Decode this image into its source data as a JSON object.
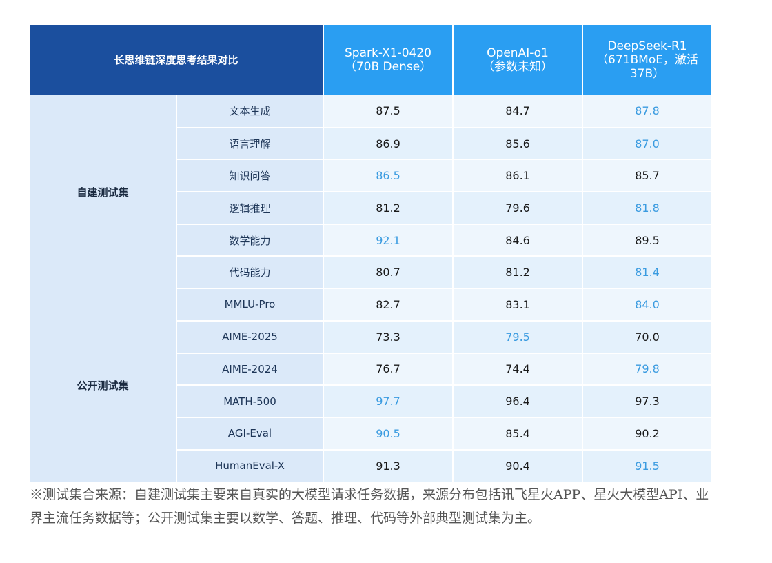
{
  "table": {
    "corner_title": "长思维链深度思考结果对比",
    "columns": [
      {
        "name": "Spark-X1-0420",
        "sub": "（70B Dense）"
      },
      {
        "name": "OpenAI-o1",
        "sub": "（参数未知）"
      },
      {
        "name": "DeepSeek-R1",
        "sub": "（671BMoE，激活37B）"
      }
    ],
    "highlight_color": "#3a9be0",
    "sections": [
      {
        "name": "自建测试集",
        "rows": [
          {
            "task": "文本生成",
            "values": [
              "87.5",
              "84.7",
              "87.8"
            ],
            "best": 2
          },
          {
            "task": "语言理解",
            "values": [
              "86.9",
              "85.6",
              "87.0"
            ],
            "best": 2
          },
          {
            "task": "知识问答",
            "values": [
              "86.5",
              "86.1",
              "85.7"
            ],
            "best": 0
          },
          {
            "task": "逻辑推理",
            "values": [
              "81.2",
              "79.6",
              "81.8"
            ],
            "best": 2
          },
          {
            "task": "数学能力",
            "values": [
              "92.1",
              "84.6",
              "89.5"
            ],
            "best": 0
          },
          {
            "task": "代码能力",
            "values": [
              "80.7",
              "81.2",
              "81.4"
            ],
            "best": 2
          }
        ]
      },
      {
        "name": "公开测试集",
        "rows": [
          {
            "task": "MMLU-Pro",
            "values": [
              "82.7",
              "83.1",
              "84.0"
            ],
            "best": 2
          },
          {
            "task": "AIME-2025",
            "values": [
              "73.3",
              "79.5",
              "70.0"
            ],
            "best": 1
          },
          {
            "task": "AIME-2024",
            "values": [
              "76.7",
              "74.4",
              "79.8"
            ],
            "best": 2
          },
          {
            "task": "MATH-500",
            "values": [
              "97.7",
              "96.4",
              "97.3"
            ],
            "best": 0
          },
          {
            "task": "AGI-Eval",
            "values": [
              "90.5",
              "85.4",
              "90.2"
            ],
            "best": 0
          },
          {
            "task": "HumanEval-X",
            "values": [
              "91.3",
              "90.4",
              "91.5"
            ],
            "best": 2
          }
        ]
      }
    ]
  },
  "footnote": "※测试集合来源：自建测试集主要来自真实的大模型请求任务数据，来源分布包括讯飞星火APP、星火大模型API、业界主流任务数据等；公开测试集主要以数学、答题、推理、代码等外部典型测试集为主。"
}
